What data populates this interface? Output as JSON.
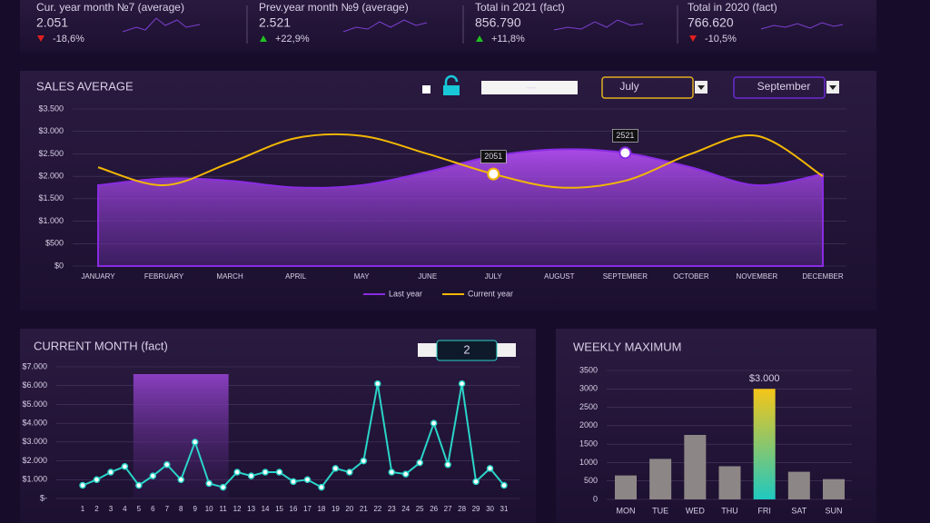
{
  "kpis": [
    {
      "title": "Cur. year month №7 (average)",
      "value": "2.051",
      "change": "-18,6%"
    },
    {
      "title": "Prev.year month №9 (average)",
      "value": "2.521",
      "change": "+22,9%"
    },
    {
      "title": "Total in 2021 (fact)",
      "value": "856.790",
      "change": "+11,8%"
    },
    {
      "title": "Total in 2020 (fact)",
      "value": "766.620",
      "change": "-10,5%"
    }
  ],
  "chart_data": [
    {
      "type": "line",
      "title": "SALES AVERAGE",
      "input": "—",
      "dropdowns": [
        "July",
        "September"
      ],
      "categories": [
        "JANUARY",
        "FEBRUARY",
        "MARCH",
        "APRIL",
        "MAY",
        "JUNE",
        "JULY",
        "AUGUST",
        "SEPTEMBER",
        "OCTOBER",
        "NOVEMBER",
        "DECEMBER"
      ],
      "series": [
        {
          "name": "Last year",
          "color": "#8a2be2",
          "area": true,
          "values": [
            1800,
            1950,
            1900,
            1750,
            1800,
            2100,
            2450,
            2600,
            2521,
            2200,
            1800,
            2050
          ],
          "value_labels": [
            null,
            null,
            null,
            null,
            null,
            null,
            null,
            null,
            "2521",
            null,
            null,
            null
          ]
        },
        {
          "name": "Current year",
          "color": "#f2b705",
          "values": [
            2200,
            1800,
            2300,
            2850,
            2900,
            2500,
            2051,
            1750,
            1900,
            2500,
            2900,
            2000
          ],
          "value_labels": [
            null,
            null,
            null,
            null,
            null,
            null,
            "2051",
            null,
            null,
            null,
            null,
            null
          ]
        }
      ],
      "ylim": [
        0,
        3500
      ],
      "yticks": [
        {
          "value": 0,
          "label": "$0"
        },
        {
          "value": 500,
          "label": "$500"
        },
        {
          "value": 1000,
          "label": "$1.000"
        },
        {
          "value": 1500,
          "label": "$1.500"
        },
        {
          "value": 2000,
          "label": "$2.000"
        },
        {
          "value": 2500,
          "label": "$2.500"
        },
        {
          "value": 3000,
          "label": "$3.000"
        },
        {
          "value": 3500,
          "label": "$3.500"
        }
      ],
      "grid": true,
      "legend": "bottom"
    },
    {
      "type": "line",
      "title": "CURRENT MONTH (fact)",
      "selector": "2",
      "x": [
        1,
        2,
        3,
        4,
        5,
        6,
        7,
        8,
        9,
        10,
        11,
        12,
        13,
        14,
        15,
        16,
        17,
        18,
        19,
        20,
        21,
        22,
        23,
        24,
        25,
        26,
        27,
        28,
        29,
        30,
        31
      ],
      "xlim": [
        1,
        31
      ],
      "highlight": [
        5,
        11
      ],
      "series": [
        {
          "name": null,
          "color": "#2ad4c8",
          "values": [
            700,
            1000,
            1400,
            1700,
            700,
            1200,
            1800,
            1000,
            3000,
            800,
            600,
            1400,
            1200,
            1400,
            1400,
            900,
            1000,
            600,
            1600,
            1400,
            2000,
            6100,
            1400,
            1300,
            1900,
            4000,
            1800,
            6100,
            900,
            1600,
            700
          ]
        }
      ],
      "ylim": [
        0,
        7000
      ],
      "yticks": [
        {
          "value": 0,
          "label": "$-"
        },
        {
          "value": 1000,
          "label": "$1.000"
        },
        {
          "value": 2000,
          "label": "$2.000"
        },
        {
          "value": 3000,
          "label": "$3.000"
        },
        {
          "value": 4000,
          "label": "$4.000"
        },
        {
          "value": 5000,
          "label": "$5.000"
        },
        {
          "value": 6000,
          "label": "$6.000"
        },
        {
          "value": 7000,
          "label": "$7.000"
        }
      ],
      "grid": true
    },
    {
      "type": "bar",
      "title": "WEEKLY MAXIMUM",
      "categories": [
        "MON",
        "TUE",
        "WED",
        "THU",
        "FRI",
        "SAT",
        "SUN"
      ],
      "values": [
        650,
        1100,
        1750,
        900,
        3000,
        750,
        550
      ],
      "value_labels": [
        null,
        null,
        null,
        null,
        "$3.000",
        null,
        null
      ],
      "colors": [
        "#8c8786",
        "#8c8786",
        "#8c8786",
        "#8c8786",
        "#f5c518",
        "#8c8786",
        "#8c8786"
      ],
      "ylim": [
        0,
        3500
      ],
      "yticks": [
        0,
        500,
        1000,
        1500,
        2000,
        2500,
        3000,
        3500
      ],
      "grid": true
    }
  ]
}
